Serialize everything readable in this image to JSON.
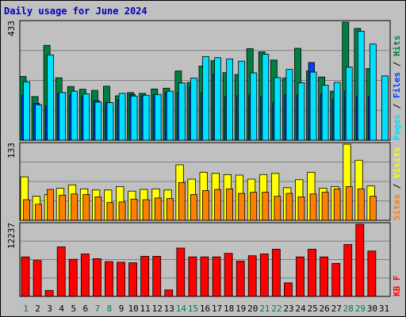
{
  "chart_data": {
    "type": "bar",
    "title": "Daily usage for June 2024",
    "days": [
      "1",
      "2",
      "3",
      "4",
      "5",
      "6",
      "7",
      "8",
      "9",
      "10",
      "11",
      "12",
      "13",
      "14",
      "15",
      "16",
      "17",
      "18",
      "19",
      "20",
      "21",
      "22",
      "23",
      "24",
      "25",
      "26",
      "27",
      "28",
      "29",
      "30",
      "31"
    ],
    "weekend_color": "#008040",
    "weekday_color": "#000000",
    "colors": {
      "background": "#c0c0c0",
      "frame_bg": "#a8a8a8",
      "title": "#0000c0",
      "hits": "#008040",
      "files": "#0040ff",
      "pages": "#00e0ff",
      "visits": "#ffff00",
      "sites": "#ff8000",
      "kbytes": "#ff0000"
    },
    "panels": [
      {
        "id": "hits",
        "max_label": "433",
        "ymax": 433,
        "legend": [
          {
            "text": "Pages",
            "color": "#00e0ff"
          },
          {
            "text": " / ",
            "color": "#000000"
          },
          {
            "text": "Files",
            "color": "#0040ff"
          },
          {
            "text": " / ",
            "color": "#000000"
          },
          {
            "text": "Hits",
            "color": "#008040"
          }
        ],
        "series": [
          {
            "name": "Hits",
            "color": "#008040",
            "values": [
              234,
              160,
              348,
              229,
              197,
              187,
              183,
              198,
              163,
              175,
              172,
              188,
              191,
              254,
              212,
              272,
              292,
              248,
              241,
              336,
              324,
              294,
              228,
              337,
              254,
              232,
              180,
              433,
              410,
              263,
              0
            ]
          },
          {
            "name": "Files",
            "color": "#0040ff",
            "values": [
              165,
              135,
              125,
              172,
              164,
              158,
              145,
              138,
              148,
              168,
              162,
              167,
              175,
              173,
              195,
              175,
              242,
              160,
              163,
              168,
              160,
              138,
              167,
              167,
              285,
              168,
              148,
              178,
              158,
              160,
              0
            ]
          },
          {
            "name": "Pages",
            "color": "#00e0ff",
            "values": [
              214,
              130,
              313,
              175,
              180,
              170,
              140,
              138,
              172,
              162,
              165,
              168,
              180,
              210,
              228,
              307,
              303,
              298,
              290,
              247,
              315,
              230,
              260,
              211,
              250,
              202,
              212,
              268,
              400,
              353,
              236
            ]
          }
        ]
      },
      {
        "id": "visits",
        "max_label": "133",
        "ymax": 133,
        "legend": [
          {
            "text": "Sites",
            "color": "#ff8000"
          },
          {
            "text": " / ",
            "color": "#000000"
          },
          {
            "text": "Visits",
            "color": "#ffff00"
          }
        ],
        "series": [
          {
            "name": "Visits",
            "color": "#ffff00",
            "values": [
              76,
              42,
              45,
              56,
              62,
              55,
              53,
              53,
              59,
              51,
              54,
              55,
              53,
              97,
              72,
              84,
              82,
              80,
              79,
              72,
              80,
              82,
              57,
              71,
              84,
              56,
              59,
              133,
              105,
              60,
              0
            ]
          },
          {
            "name": "Sites",
            "color": "#ff8000",
            "values": [
              36,
              28,
              54,
              44,
              46,
              45,
              41,
              31,
              32,
              37,
              36,
              39,
              38,
              66,
              45,
              52,
              54,
              55,
              47,
              49,
              49,
              42,
              47,
              41,
              46,
              49,
              55,
              59,
              55,
              42,
              0
            ]
          }
        ]
      },
      {
        "id": "kbytes",
        "max_label": "12237",
        "ymax": 12237,
        "legend": [
          {
            "text": "KB F",
            "color": "#ff0000"
          }
        ],
        "series": [
          {
            "name": "KB F",
            "color": "#ff0000",
            "values": [
              6700,
              6100,
              1000,
              8400,
              6300,
              7200,
              6400,
              5900,
              5800,
              5700,
              6800,
              6800,
              1100,
              8200,
              6700,
              6700,
              6700,
              7300,
              6000,
              6900,
              7200,
              8000,
              2300,
              6700,
              8000,
              6700,
              5600,
              8800,
              12237,
              7700,
              0
            ]
          }
        ]
      }
    ]
  }
}
